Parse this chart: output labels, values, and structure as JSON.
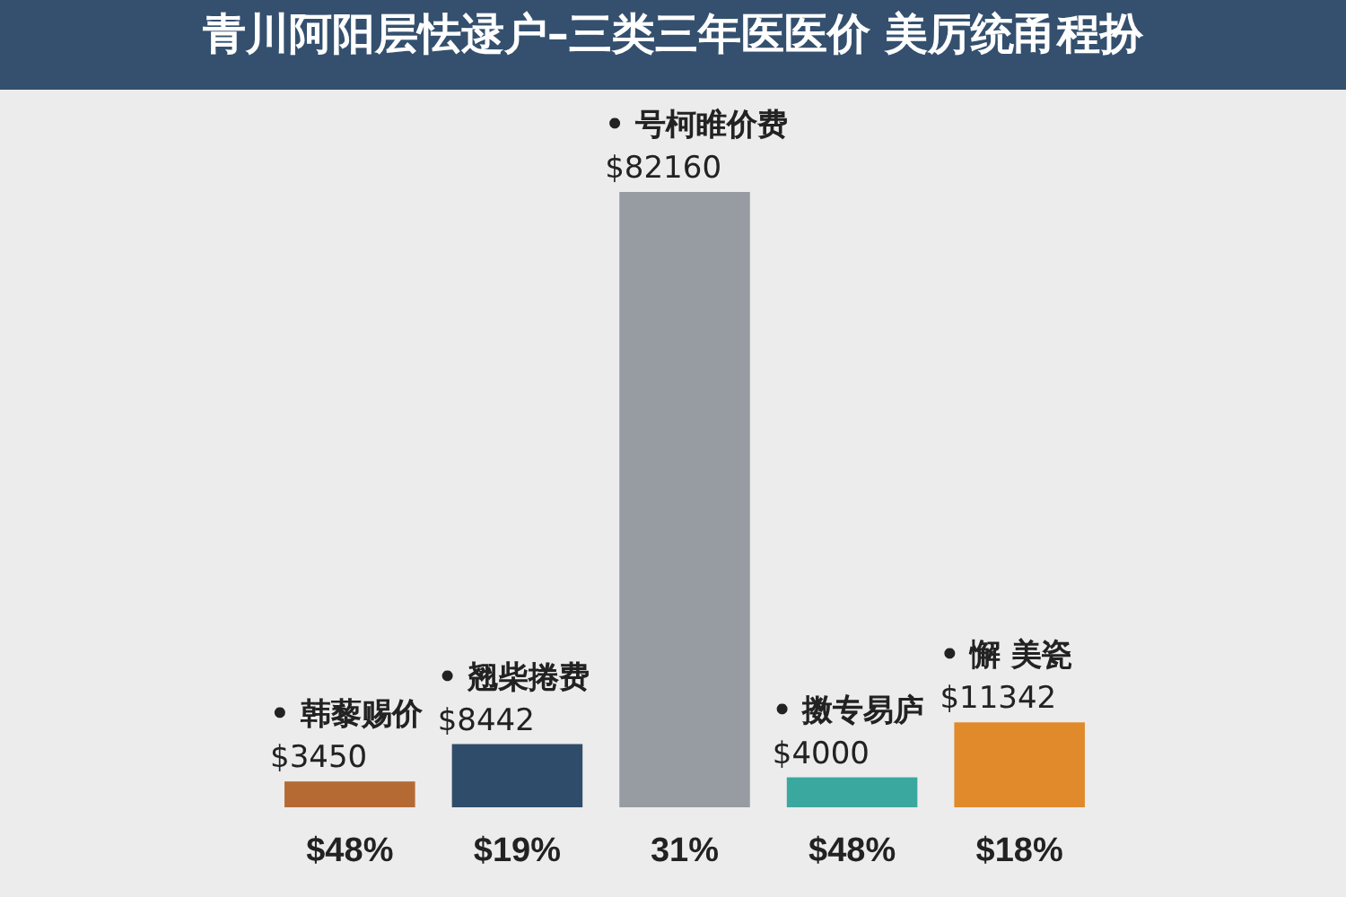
{
  "chart_data": {
    "type": "bar",
    "title": "青川阿阳层怯逯户–三类三年医医价 美厉统甬程扮",
    "data_labels": true,
    "categories": [
      "$48%",
      "$19%",
      "31%",
      "$48%",
      "$18%"
    ],
    "values": [
      3450,
      8442,
      82160,
      4000,
      11342
    ],
    "colors": [
      "#b56a34",
      "#2f4d6b",
      "#979ca3",
      "#3ba8a0",
      "#e08a2c"
    ],
    "value_labels": [
      "$3450",
      "$8442",
      "$82160",
      "$4000",
      "$11342"
    ],
    "annotations": [
      "• 韩藜赐价",
      "• 翘柴捲费",
      "• 号柯睢价费",
      "• 擞专易庐",
      "• 懈 美瓷"
    ]
  }
}
